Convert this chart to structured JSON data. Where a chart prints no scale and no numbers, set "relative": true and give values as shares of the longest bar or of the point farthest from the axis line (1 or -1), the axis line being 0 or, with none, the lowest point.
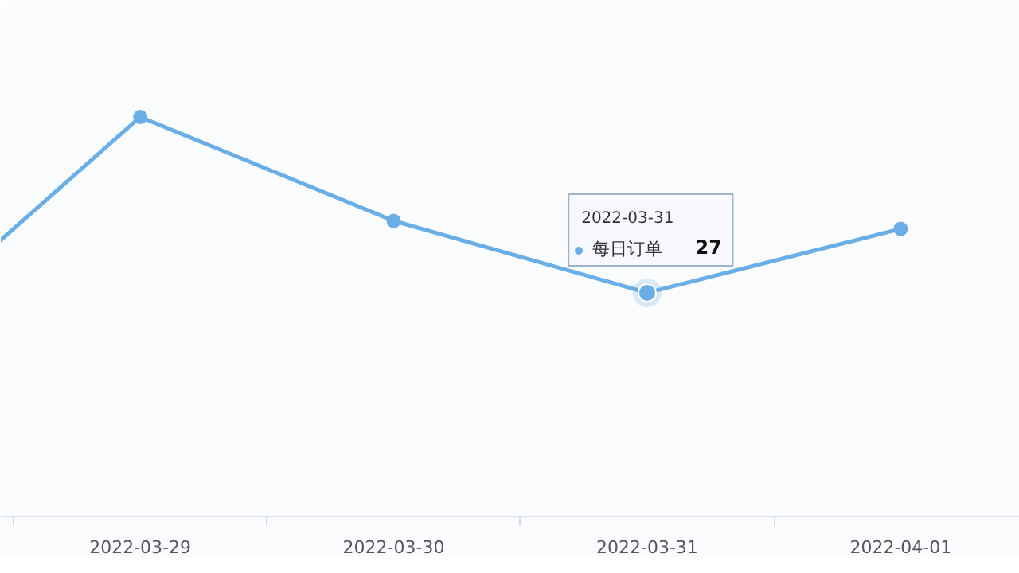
{
  "chart_data": {
    "type": "line",
    "categories": [
      null,
      "2022-03-29",
      "2022-03-30",
      "2022-03-31",
      "2022-04-01"
    ],
    "series": [
      {
        "name": "每日订单",
        "color": "#6aaee8",
        "values": [
          0.44,
          1,
          0.74,
          0.56,
          0.72
        ]
      }
    ],
    "relative": true,
    "tick_labels": "x",
    "marker": "circle",
    "annotations": [
      "2022-03-31",
      "27"
    ]
  }
}
